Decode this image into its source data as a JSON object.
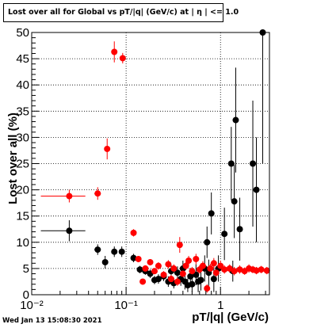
{
  "title": "Lost over all for Global vs pT/|q| (GeV/c) at | η | <= 1.0",
  "timestamp": "Wed Jan 13 15:08:30 2021",
  "chart_data": {
    "type": "scatter",
    "xlabel": "pT/|q| (GeV/c)",
    "ylabel": "Lost over all (%)",
    "xscale": "log",
    "xlim": [
      0.01,
      3.3
    ],
    "ylim": [
      0,
      50
    ],
    "grid": true,
    "x_tick_labels": [
      "10⁻²",
      "10⁻¹",
      "1"
    ],
    "y_tick_labels": [
      "0",
      "5",
      "10",
      "15",
      "20",
      "25",
      "30",
      "35",
      "40",
      "45",
      "50"
    ],
    "series": [
      {
        "color": "#000000",
        "points": [
          {
            "x": 0.025,
            "y": 12.2,
            "xerr": [
              0.0125,
              0.012
            ],
            "yerr": 2.0
          },
          {
            "x": 0.05,
            "y": 8.6,
            "xerr": [
              0.004,
              0.004
            ],
            "yerr": 1.0
          },
          {
            "x": 0.06,
            "y": 6.2,
            "xerr": [
              0.002,
              0.002
            ],
            "yerr": 1.2
          },
          {
            "x": 0.075,
            "y": 8.2,
            "xerr": [
              0.003,
              0.003
            ],
            "yerr": 1.0
          },
          {
            "x": 0.09,
            "y": 8.2,
            "xerr": [
              0.003,
              0.003
            ],
            "yerr": 1.0
          },
          {
            "x": 0.12,
            "y": 7.0,
            "xerr": [
              0.003,
              0.003
            ],
            "yerr": 0.8
          },
          {
            "x": 0.14,
            "y": 4.8,
            "xerr": [
              0.003,
              0.003
            ],
            "yerr": 0.7
          },
          {
            "x": 0.16,
            "y": 4.5,
            "xerr": [
              0.003,
              0.003
            ],
            "yerr": 0.7
          },
          {
            "x": 0.18,
            "y": 4.0,
            "xerr": [
              0.003,
              0.003
            ],
            "yerr": 0.8
          },
          {
            "x": 0.2,
            "y": 2.8,
            "xerr": [
              0.004,
              0.004
            ],
            "yerr": 0.8
          },
          {
            "x": 0.22,
            "y": 3.0,
            "xerr": [
              0.004,
              0.004
            ],
            "yerr": 0.9
          },
          {
            "x": 0.25,
            "y": 3.5,
            "xerr": [
              0.005,
              0.005
            ],
            "yerr": 0.9
          },
          {
            "x": 0.28,
            "y": 2.5,
            "xerr": [
              0.005,
              0.005
            ],
            "yerr": 1.0
          },
          {
            "x": 0.3,
            "y": 4.5,
            "xerr": [
              0.005,
              0.005
            ],
            "yerr": 1.2
          },
          {
            "x": 0.32,
            "y": 2.2,
            "xerr": [
              0.005,
              0.005
            ],
            "yerr": 1.0
          },
          {
            "x": 0.35,
            "y": 4.2,
            "xerr": [
              0.006,
              0.006
            ],
            "yerr": 1.2
          },
          {
            "x": 0.38,
            "y": 3.0,
            "xerr": [
              0.006,
              0.006
            ],
            "yerr": 1.3
          },
          {
            "x": 0.4,
            "y": 5.0,
            "xerr": [
              0.006,
              0.006
            ],
            "yerr": 1.5
          },
          {
            "x": 0.42,
            "y": 2.5,
            "xerr": [
              0.007,
              0.007
            ],
            "yerr": 1.5
          },
          {
            "x": 0.45,
            "y": 1.8,
            "xerr": [
              0.007,
              0.007
            ],
            "yerr": 1.3
          },
          {
            "x": 0.48,
            "y": 3.5,
            "xerr": [
              0.008,
              0.008
            ],
            "yerr": 1.6
          },
          {
            "x": 0.5,
            "y": 2.0,
            "xerr": [
              0.008,
              0.008
            ],
            "yerr": 1.5
          },
          {
            "x": 0.55,
            "y": 3.8,
            "xerr": [
              0.009,
              0.009
            ],
            "yerr": 2.0
          },
          {
            "x": 0.58,
            "y": 2.5,
            "xerr": [
              0.009,
              0.009
            ],
            "yerr": 2.0
          },
          {
            "x": 0.62,
            "y": 2.8,
            "xerr": [
              0.01,
              0.01
            ],
            "yerr": 2.0
          },
          {
            "x": 0.68,
            "y": 5.0,
            "xerr": [
              0.01,
              0.01
            ],
            "yerr": 2.5
          },
          {
            "x": 0.72,
            "y": 10.0,
            "xerr": [
              0.01,
              0.01
            ],
            "yerr": 3.0
          },
          {
            "x": 0.75,
            "y": 4.2,
            "xerr": [
              0.01,
              0.01
            ],
            "yerr": 2.5
          },
          {
            "x": 0.8,
            "y": 15.5,
            "xerr": [
              0.015,
              0.015
            ],
            "yerr": 4.0
          },
          {
            "x": 0.85,
            "y": 3.0,
            "xerr": [
              0.015,
              0.015
            ],
            "yerr": 2.5
          },
          {
            "x": 0.95,
            "y": 5.0,
            "xerr": [
              0.015,
              0.015
            ],
            "yerr": 2.5
          },
          {
            "x": 1.1,
            "y": 11.6,
            "xerr": [
              0.02,
              0.02
            ],
            "yerr": 5.0
          },
          {
            "x": 1.3,
            "y": 25.0,
            "xerr": [
              0.02,
              0.02
            ],
            "yerr": 7.0
          },
          {
            "x": 1.35,
            "y": 4.5,
            "xerr": [
              0.02,
              0.02
            ],
            "yerr": 2.0
          },
          {
            "x": 1.4,
            "y": 17.8,
            "xerr": [
              0.02,
              0.02
            ],
            "yerr": 7.0
          },
          {
            "x": 1.45,
            "y": 33.3,
            "xerr": [
              0.02,
              0.02
            ],
            "yerr": 10.0
          },
          {
            "x": 1.6,
            "y": 12.5,
            "xerr": [
              0.03,
              0.03
            ],
            "yerr": 6.0
          },
          {
            "x": 2.2,
            "y": 25.0,
            "xerr": [
              0.04,
              0.04
            ],
            "yerr": 12.0
          },
          {
            "x": 2.4,
            "y": 20.0,
            "xerr": [
              0.04,
              0.04
            ],
            "yerr": 10.0
          },
          {
            "x": 2.8,
            "y": 50.0,
            "xerr": [
              0.05,
              0.05
            ],
            "yerr": 25.0
          }
        ]
      },
      {
        "color": "#ff0000",
        "points": [
          {
            "x": 0.025,
            "y": 18.8,
            "xerr": [
              0.0125,
              0.012
            ],
            "yerr": 1.2
          },
          {
            "x": 0.05,
            "y": 19.3,
            "xerr": [
              0.004,
              0.004
            ],
            "yerr": 1.2
          },
          {
            "x": 0.063,
            "y": 27.8,
            "xerr": [
              0.002,
              0.002
            ],
            "yerr": 2.0
          },
          {
            "x": 0.075,
            "y": 46.3,
            "xerr": [
              0.003,
              0.003
            ],
            "yerr": 2.0
          },
          {
            "x": 0.092,
            "y": 45.1,
            "xerr": [
              0.003,
              0.003
            ],
            "yerr": 1.0
          },
          {
            "x": 0.12,
            "y": 11.8,
            "xerr": [
              0.003,
              0.003
            ],
            "yerr": 0.7
          },
          {
            "x": 0.135,
            "y": 6.8,
            "xerr": [
              0.003,
              0.003
            ],
            "yerr": 0.6
          },
          {
            "x": 0.15,
            "y": 2.5,
            "xerr": [
              0.003,
              0.003
            ],
            "yerr": 0.5
          },
          {
            "x": 0.16,
            "y": 5.0,
            "xerr": [
              0.003,
              0.003
            ],
            "yerr": 0.6
          },
          {
            "x": 0.18,
            "y": 6.2,
            "xerr": [
              0.003,
              0.003
            ],
            "yerr": 0.6
          },
          {
            "x": 0.2,
            "y": 4.5,
            "xerr": [
              0.004,
              0.004
            ],
            "yerr": 0.6
          },
          {
            "x": 0.22,
            "y": 5.5,
            "xerr": [
              0.004,
              0.004
            ],
            "yerr": 0.7
          },
          {
            "x": 0.25,
            "y": 3.8,
            "xerr": [
              0.005,
              0.005
            ],
            "yerr": 0.7
          },
          {
            "x": 0.28,
            "y": 5.8,
            "xerr": [
              0.005,
              0.005
            ],
            "yerr": 0.8
          },
          {
            "x": 0.3,
            "y": 3.0,
            "xerr": [
              0.005,
              0.005
            ],
            "yerr": 0.8
          },
          {
            "x": 0.32,
            "y": 5.0,
            "xerr": [
              0.005,
              0.005
            ],
            "yerr": 0.8
          },
          {
            "x": 0.35,
            "y": 2.5,
            "xerr": [
              0.006,
              0.006
            ],
            "yerr": 0.8
          },
          {
            "x": 0.37,
            "y": 9.5,
            "xerr": [
              0.006,
              0.006
            ],
            "yerr": 1.5
          },
          {
            "x": 0.4,
            "y": 4.0,
            "xerr": [
              0.006,
              0.006
            ],
            "yerr": 0.8
          },
          {
            "x": 0.43,
            "y": 5.5,
            "xerr": [
              0.007,
              0.007
            ],
            "yerr": 0.8
          },
          {
            "x": 0.46,
            "y": 6.5,
            "xerr": [
              0.007,
              0.007
            ],
            "yerr": 0.9
          },
          {
            "x": 0.5,
            "y": 4.5,
            "xerr": [
              0.008,
              0.008
            ],
            "yerr": 0.8
          },
          {
            "x": 0.55,
            "y": 6.8,
            "xerr": [
              0.009,
              0.009
            ],
            "yerr": 1.0
          },
          {
            "x": 0.6,
            "y": 4.8,
            "xerr": [
              0.01,
              0.01
            ],
            "yerr": 0.8
          },
          {
            "x": 0.65,
            "y": 5.5,
            "xerr": [
              0.01,
              0.01
            ],
            "yerr": 0.9
          },
          {
            "x": 0.72,
            "y": 1.2,
            "xerr": [
              0.01,
              0.01
            ],
            "yerr": 0.8
          },
          {
            "x": 0.78,
            "y": 5.0,
            "xerr": [
              0.015,
              0.015
            ],
            "yerr": 0.9
          },
          {
            "x": 0.85,
            "y": 6.0,
            "xerr": [
              0.015,
              0.015
            ],
            "yerr": 1.0
          },
          {
            "x": 0.9,
            "y": 4.2,
            "xerr": [
              0.015,
              0.015
            ],
            "yerr": 0.8
          },
          {
            "x": 1.0,
            "y": 5.5,
            "xerr": [
              0.02,
              0.02
            ],
            "yerr": 1.0
          },
          {
            "x": 1.1,
            "y": 4.8,
            "xerr": [
              0.02,
              0.02
            ],
            "yerr": 0.8
          },
          {
            "x": 1.25,
            "y": 5.0,
            "xerr": [
              0.02,
              0.02
            ],
            "yerr": 0.8
          },
          {
            "x": 1.4,
            "y": 4.5,
            "xerr": [
              0.02,
              0.02
            ],
            "yerr": 0.8
          },
          {
            "x": 1.6,
            "y": 4.8,
            "xerr": [
              0.03,
              0.03
            ],
            "yerr": 0.8
          },
          {
            "x": 1.8,
            "y": 4.5,
            "xerr": [
              0.03,
              0.03
            ],
            "yerr": 0.7
          },
          {
            "x": 2.0,
            "y": 5.0,
            "xerr": [
              0.04,
              0.04
            ],
            "yerr": 0.8
          },
          {
            "x": 2.2,
            "y": 4.8,
            "xerr": [
              0.04,
              0.04
            ],
            "yerr": 0.7
          },
          {
            "x": 2.4,
            "y": 4.6,
            "xerr": [
              0.04,
              0.04
            ],
            "yerr": 0.7
          },
          {
            "x": 2.7,
            "y": 4.8,
            "xerr": [
              0.05,
              0.05
            ],
            "yerr": 0.7
          },
          {
            "x": 3.1,
            "y": 4.6,
            "xerr": [
              0.05,
              0.05
            ],
            "yerr": 0.7
          }
        ]
      }
    ]
  }
}
